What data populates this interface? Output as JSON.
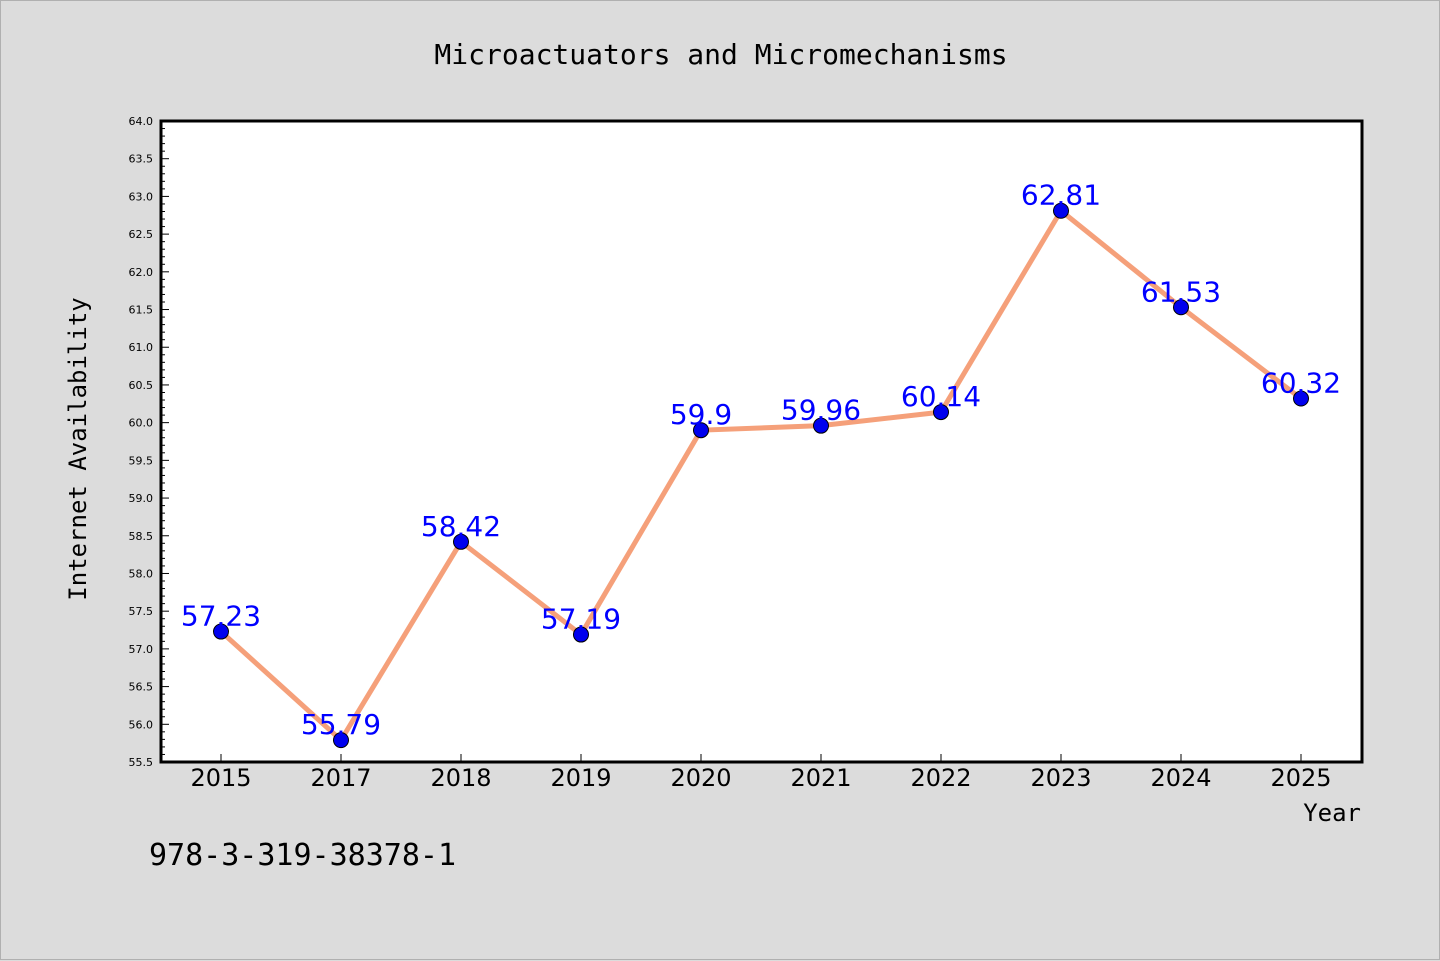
{
  "chart_data": {
    "type": "line",
    "title": "Microactuators and Micromechanisms",
    "xlabel": "Year",
    "ylabel": "Internet Availability",
    "categories": [
      "2015",
      "2017",
      "2018",
      "2019",
      "2020",
      "2021",
      "2022",
      "2023",
      "2024",
      "2025"
    ],
    "series": [
      {
        "values": [
          57.23,
          55.79,
          58.42,
          57.19,
          59.9,
          59.96,
          60.14,
          62.81,
          61.53,
          60.32
        ],
        "labels": [
          "57.23",
          "55.79",
          "58.42",
          "57.19",
          "59.9",
          "59.96",
          "60.14",
          "62.81",
          "61.53",
          "60.32"
        ],
        "line_color": "#f5a07a",
        "marker_color": "#0000ee",
        "label_color": "#0000ff"
      }
    ],
    "ylim": [
      55.5,
      64.0
    ],
    "yticks": [
      "55.5",
      "56.0",
      "56.5",
      "57.0",
      "57.5",
      "58.0",
      "58.5",
      "59.0",
      "59.5",
      "60.0",
      "60.5",
      "61.0",
      "61.5",
      "62.0",
      "62.5",
      "63.0",
      "63.5",
      "64.0"
    ],
    "grid": false,
    "annotation": "978-3-319-38378-1",
    "background_color": "#dcdcdc",
    "plot_background": "#ffffff"
  }
}
